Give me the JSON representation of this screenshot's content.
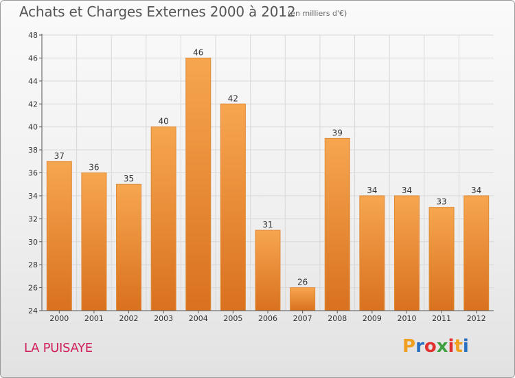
{
  "header": {
    "title": "Achats et Charges Externes 2000 à 2012",
    "subtitle": "(en milliers d'€)"
  },
  "footer": {
    "region": "LA PUISAYE",
    "logo_text": "Proxiti",
    "logo_colors": [
      "#f0a020",
      "#2a70c0",
      "#e03030",
      "#40a040",
      "#e03030",
      "#f0a020",
      "#2a70c0"
    ]
  },
  "colors": {
    "bar_top": "#f7a650",
    "bar_bottom": "#d9711e",
    "bar_edge": "#e08a35",
    "axis": "#555555",
    "grid": "#d8d8d8",
    "label": "#333333"
  },
  "chart_data": {
    "type": "bar",
    "categories": [
      "2000",
      "2001",
      "2002",
      "2003",
      "2004",
      "2005",
      "2006",
      "2007",
      "2008",
      "2009",
      "2010",
      "2011",
      "2012"
    ],
    "values": [
      37,
      36,
      35,
      40,
      46,
      42,
      31,
      26,
      39,
      34,
      34,
      33,
      34
    ],
    "data_labels": [
      "37",
      "36",
      "35",
      "40",
      "46",
      "42",
      "31",
      "26",
      "39",
      "34",
      "34",
      "33",
      "34"
    ],
    "title": "Achats et Charges Externes 2000 à 2012",
    "subtitle": "(en milliers d'€)",
    "xlabel": "",
    "ylabel": "",
    "ylim": [
      24,
      48
    ],
    "yticks": [
      24,
      26,
      28,
      30,
      32,
      34,
      36,
      38,
      40,
      42,
      44,
      46,
      48
    ],
    "grid": true,
    "legend": "none"
  }
}
